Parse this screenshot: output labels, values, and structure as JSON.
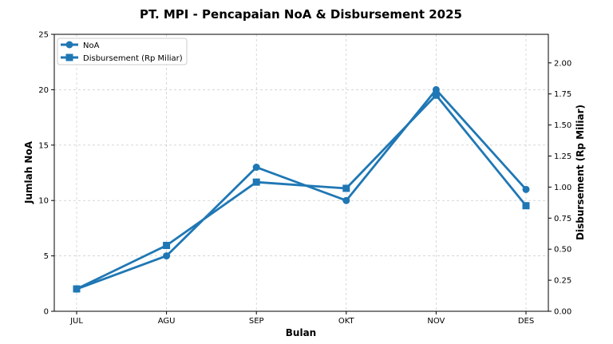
{
  "chart_data": {
    "type": "line",
    "title": "PT. MPI - Pencapaian NoA & Disbursement 2025",
    "xlabel": "Bulan",
    "ylabel": "Jumlah NoA",
    "ylabel_right": "Disbursement (Rp Miliar)",
    "categories": [
      "JUL",
      "AGU",
      "SEP",
      "OKT",
      "NOV",
      "DES"
    ],
    "ylim": [
      0,
      25
    ],
    "ylim_right": [
      0,
      2.23
    ],
    "yticks": [
      "0",
      "5",
      "10",
      "15",
      "20",
      "25"
    ],
    "yticks_right": [
      "0.00",
      "0.25",
      "0.50",
      "0.75",
      "1.00",
      "1.25",
      "1.50",
      "1.75",
      "2.00"
    ],
    "grid": true,
    "legend_position": "top-left",
    "series": [
      {
        "name": "NoA",
        "axis": "left",
        "marker": "circle",
        "color": "#1f77b4",
        "values": [
          2,
          5,
          13,
          10,
          20,
          11
        ]
      },
      {
        "name": "Disbursement (Rp Miliar)",
        "axis": "right",
        "marker": "square",
        "color": "#1f77b4",
        "values": [
          0.18,
          0.53,
          1.04,
          0.99,
          1.74,
          0.85
        ]
      }
    ]
  }
}
